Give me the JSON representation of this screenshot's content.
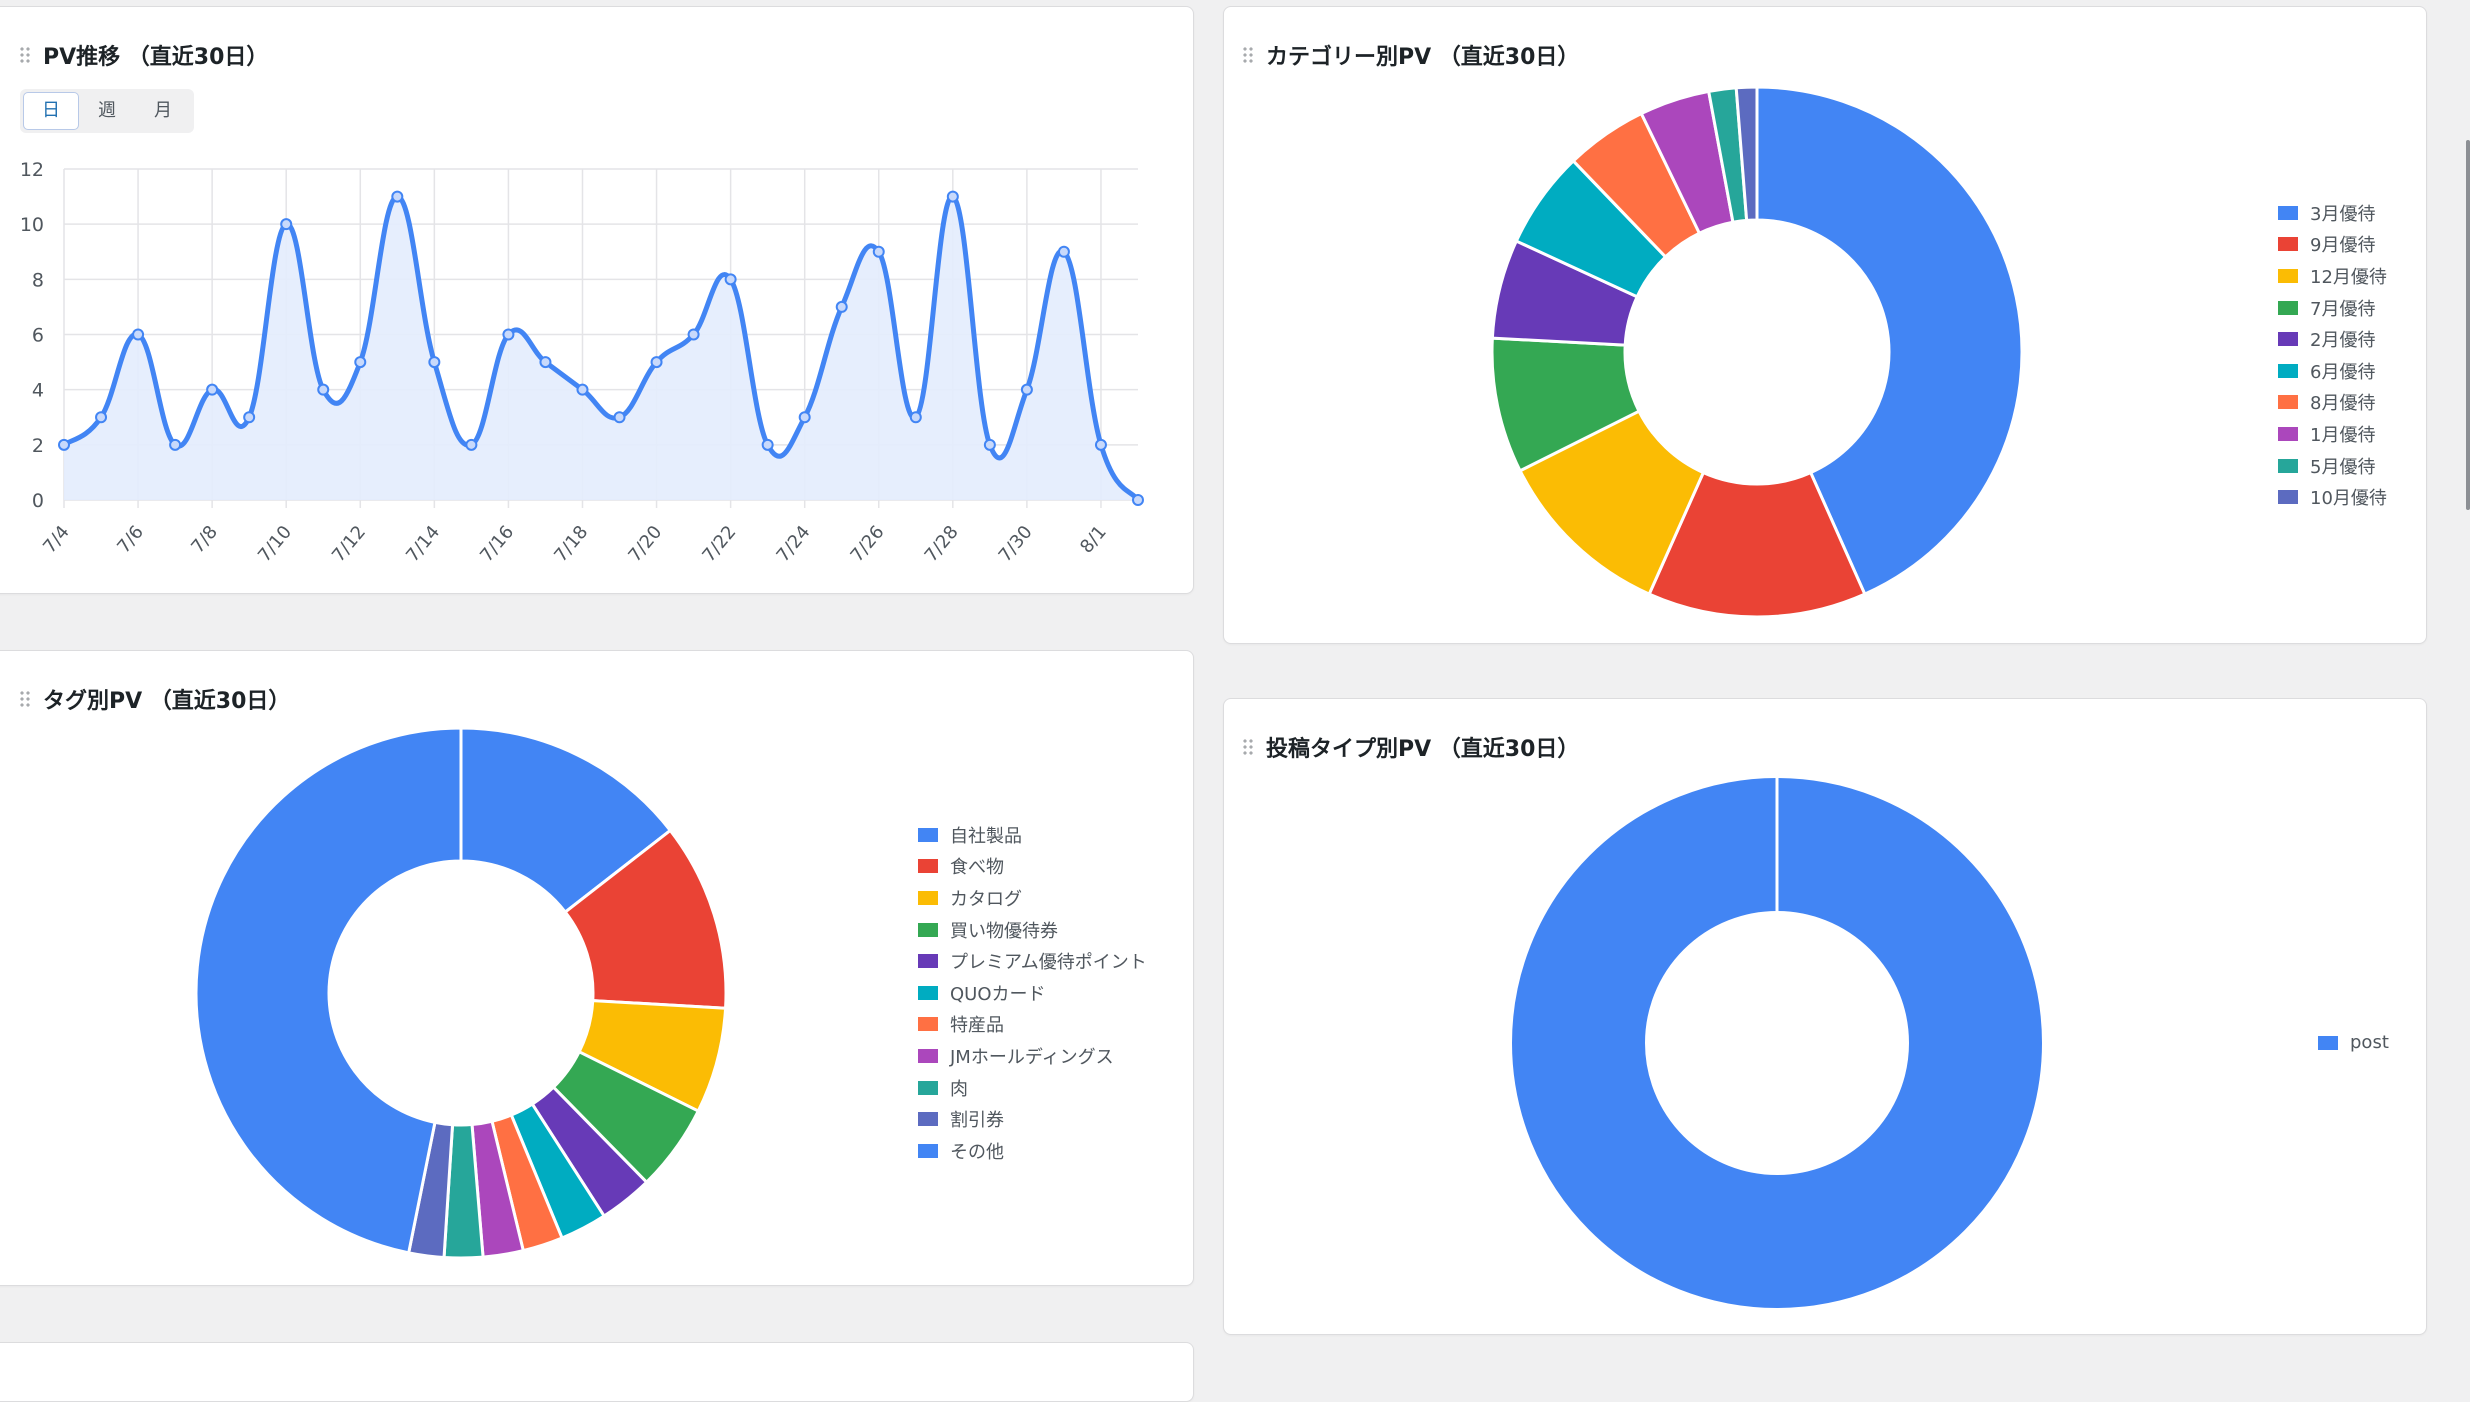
{
  "cards": {
    "pv_trend": {
      "title": "PV推移 （直近30日）"
    },
    "category": {
      "title": "カテゴリー別PV （直近30日）"
    },
    "tag": {
      "title": "タグ別PV （直近30日）"
    },
    "post_type": {
      "title": "投稿タイプ別PV （直近30日）"
    }
  },
  "period_toggle": {
    "options": [
      "日",
      "週",
      "月"
    ],
    "selected": "日"
  },
  "colors": {
    "accent": "#4285f4",
    "area_fill": "#e3ecfd",
    "grid": "#e4e4e7"
  },
  "chart_data": [
    {
      "id": "pv_trend",
      "type": "line",
      "x": [
        "7/4",
        "7/5",
        "7/6",
        "7/7",
        "7/8",
        "7/9",
        "7/10",
        "7/11",
        "7/12",
        "7/13",
        "7/14",
        "7/15",
        "7/16",
        "7/17",
        "7/18",
        "7/19",
        "7/20",
        "7/21",
        "7/22",
        "7/23",
        "7/24",
        "7/25",
        "7/26",
        "7/27",
        "7/28",
        "7/29",
        "7/30",
        "7/31",
        "8/1",
        "8/2"
      ],
      "x_tick_labels": [
        "7/4",
        "7/6",
        "7/8",
        "7/10",
        "7/12",
        "7/14",
        "7/16",
        "7/18",
        "7/20",
        "7/22",
        "7/24",
        "7/26",
        "7/28",
        "7/30",
        "8/1"
      ],
      "series": [
        {
          "values": [
            2,
            3,
            6,
            2,
            4,
            3,
            10,
            4,
            5,
            11,
            5,
            2,
            6,
            5,
            4,
            3,
            5,
            6,
            8,
            2,
            3,
            7,
            9,
            3,
            11,
            2,
            4,
            9,
            2,
            0
          ],
          "color": "#4285f4"
        }
      ],
      "ylim": [
        0,
        12
      ],
      "yticks": [
        0,
        2,
        4,
        6,
        8,
        10,
        12
      ],
      "grid": true,
      "fill": true,
      "smooth": true
    },
    {
      "id": "category",
      "type": "pie",
      "donut": true,
      "legend_position": "right",
      "labels": [
        "3月優待",
        "9月優待",
        "12月優待",
        "7月優待",
        "2月優待",
        "6月優待",
        "8月優待",
        "1月優待",
        "5月優待",
        "10月優待"
      ],
      "values": [
        41.6,
        12.8,
        10.5,
        7.9,
        5.8,
        5.7,
        4.8,
        4.1,
        1.6,
        1.2
      ],
      "colors": [
        "#4285f4",
        "#ea4335",
        "#fbbc04",
        "#34a853",
        "#673ab7",
        "#00acc1",
        "#ff7043",
        "#ab47bc",
        "#26a69a",
        "#5c6bc0"
      ]
    },
    {
      "id": "tag",
      "type": "pie",
      "donut": true,
      "legend_position": "right",
      "labels": [
        "自社製品",
        "食べ物",
        "カタログ",
        "買い物優待券",
        "プレミアム優待ポイント",
        "QUOカード",
        "特産品",
        "JMホールディングス",
        "肉",
        "割引券",
        "その他"
      ],
      "values": [
        14.2,
        11.2,
        6.3,
        5.2,
        3.2,
        2.8,
        2.4,
        2.4,
        2.3,
        2.1,
        45.9
      ],
      "colors": [
        "#4285f4",
        "#ea4335",
        "#fbbc04",
        "#34a853",
        "#673ab7",
        "#00acc1",
        "#ff7043",
        "#ab47bc",
        "#26a69a",
        "#5c6bc0",
        "#4285f4"
      ]
    },
    {
      "id": "post_type",
      "type": "pie",
      "donut": true,
      "legend_position": "right",
      "labels": [
        "post"
      ],
      "values": [
        100
      ],
      "colors": [
        "#4285f4"
      ]
    }
  ]
}
